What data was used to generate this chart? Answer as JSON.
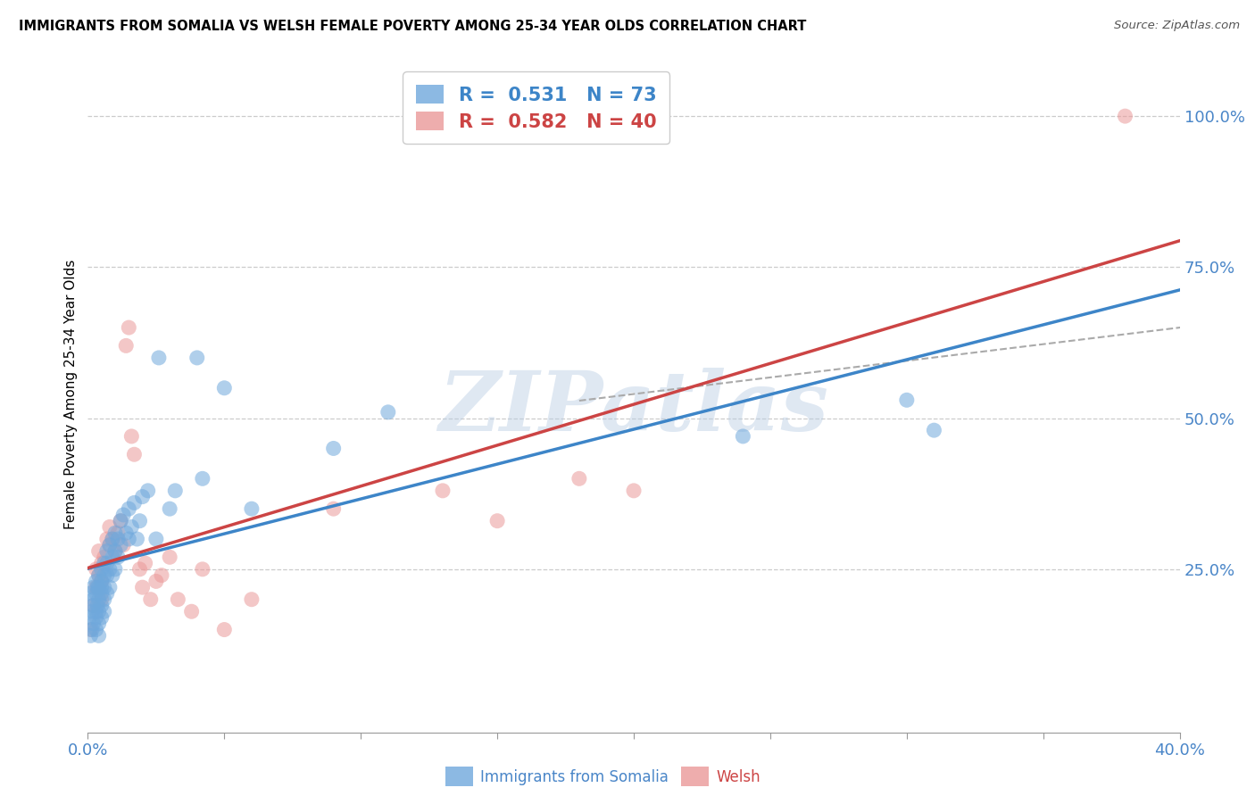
{
  "title": "IMMIGRANTS FROM SOMALIA VS WELSH FEMALE POVERTY AMONG 25-34 YEAR OLDS CORRELATION CHART",
  "source": "Source: ZipAtlas.com",
  "ylabel": "Female Poverty Among 25-34 Year Olds",
  "xlim": [
    0.0,
    0.4
  ],
  "ylim": [
    -0.02,
    1.1
  ],
  "grid_color": "#cccccc",
  "background_color": "#ffffff",
  "watermark": "ZIPatlas",
  "somalia_color": "#6fa8dc",
  "welsh_color": "#ea9999",
  "somalia_R": 0.531,
  "somalia_N": 73,
  "welsh_R": 0.582,
  "welsh_N": 40,
  "somalia_line_color": "#3d85c8",
  "welsh_line_color": "#cc4444",
  "legend_somalia_label": "Immigrants from Somalia",
  "legend_welsh_label": "Welsh",
  "somalia_x": [
    0.0005,
    0.001,
    0.001,
    0.0015,
    0.0015,
    0.002,
    0.002,
    0.002,
    0.002,
    0.003,
    0.003,
    0.003,
    0.003,
    0.003,
    0.0035,
    0.0035,
    0.004,
    0.004,
    0.004,
    0.004,
    0.004,
    0.004,
    0.005,
    0.005,
    0.005,
    0.005,
    0.005,
    0.005,
    0.006,
    0.006,
    0.006,
    0.006,
    0.006,
    0.007,
    0.007,
    0.007,
    0.007,
    0.008,
    0.008,
    0.008,
    0.009,
    0.009,
    0.009,
    0.01,
    0.01,
    0.01,
    0.011,
    0.011,
    0.012,
    0.012,
    0.013,
    0.014,
    0.015,
    0.015,
    0.016,
    0.017,
    0.018,
    0.019,
    0.02,
    0.022,
    0.025,
    0.026,
    0.03,
    0.032,
    0.04,
    0.042,
    0.05,
    0.06,
    0.09,
    0.11,
    0.24,
    0.3,
    0.31
  ],
  "somalia_y": [
    0.17,
    0.14,
    0.21,
    0.18,
    0.15,
    0.2,
    0.22,
    0.16,
    0.19,
    0.23,
    0.17,
    0.21,
    0.18,
    0.15,
    0.19,
    0.22,
    0.24,
    0.2,
    0.22,
    0.18,
    0.16,
    0.14,
    0.25,
    0.21,
    0.23,
    0.19,
    0.17,
    0.22,
    0.26,
    0.22,
    0.24,
    0.2,
    0.18,
    0.28,
    0.24,
    0.21,
    0.26,
    0.29,
    0.25,
    0.22,
    0.3,
    0.27,
    0.24,
    0.31,
    0.28,
    0.25,
    0.3,
    0.27,
    0.33,
    0.29,
    0.34,
    0.31,
    0.35,
    0.3,
    0.32,
    0.36,
    0.3,
    0.33,
    0.37,
    0.38,
    0.3,
    0.6,
    0.35,
    0.38,
    0.6,
    0.4,
    0.55,
    0.35,
    0.45,
    0.51,
    0.47,
    0.53,
    0.48
  ],
  "welsh_x": [
    0.001,
    0.002,
    0.003,
    0.003,
    0.004,
    0.004,
    0.005,
    0.005,
    0.005,
    0.006,
    0.007,
    0.008,
    0.008,
    0.009,
    0.01,
    0.011,
    0.012,
    0.013,
    0.014,
    0.015,
    0.016,
    0.017,
    0.019,
    0.02,
    0.021,
    0.023,
    0.025,
    0.027,
    0.03,
    0.033,
    0.038,
    0.042,
    0.05,
    0.06,
    0.09,
    0.13,
    0.15,
    0.18,
    0.2,
    0.38
  ],
  "welsh_y": [
    0.15,
    0.19,
    0.22,
    0.25,
    0.24,
    0.28,
    0.2,
    0.26,
    0.23,
    0.27,
    0.3,
    0.29,
    0.32,
    0.3,
    0.28,
    0.31,
    0.33,
    0.29,
    0.62,
    0.65,
    0.47,
    0.44,
    0.25,
    0.22,
    0.26,
    0.2,
    0.23,
    0.24,
    0.27,
    0.2,
    0.18,
    0.25,
    0.15,
    0.2,
    0.35,
    0.38,
    0.33,
    0.4,
    0.38,
    1.0
  ]
}
